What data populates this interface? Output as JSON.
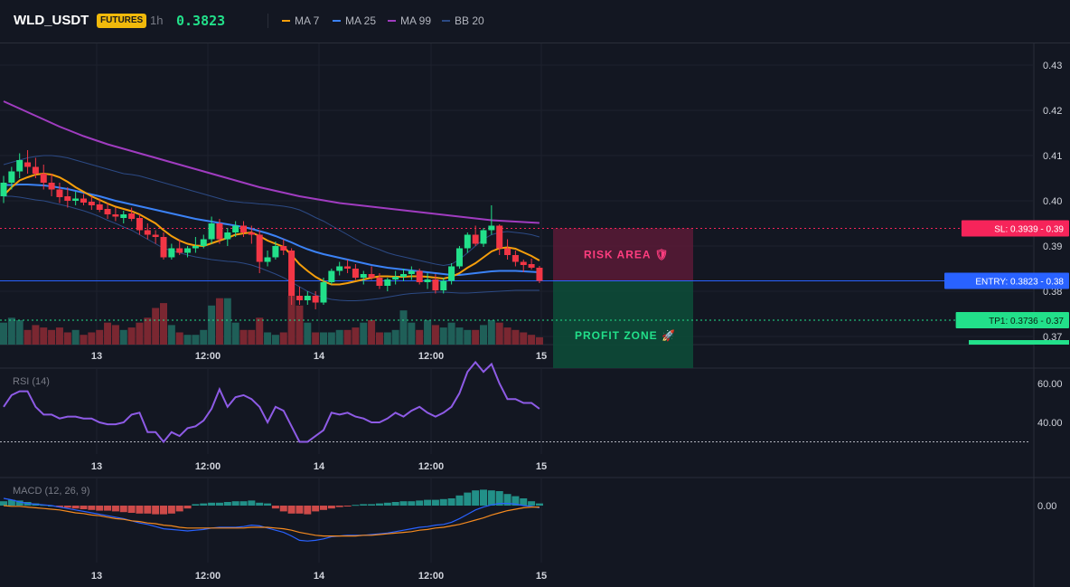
{
  "header": {
    "symbol": "WLD_USDT",
    "market_badge": "FUTURES",
    "interval": "1h",
    "last_price": "0.3823",
    "indicators": [
      {
        "label": "MA 7",
        "color": "#f59e0b"
      },
      {
        "label": "MA 25",
        "color": "#3b82f6"
      },
      {
        "label": "MA 99",
        "color": "#a03cc0"
      },
      {
        "label": "BB 20",
        "color": "#2c4a85"
      }
    ]
  },
  "colors": {
    "up": "#26a69a",
    "up_bright": "#22e08a",
    "down": "#f23645",
    "volume_up": "#1f5f58",
    "volume_down": "#7a2731",
    "sl": "#f6245a",
    "entry": "#2962ff",
    "tp": "#22e08a",
    "rsi": "#8e5be6",
    "macd_line": "#2962ff",
    "signal_line": "#f58a1f",
    "hist_up": "#26a69a",
    "hist_down": "#ef5350"
  },
  "time_axis": [
    "13",
    "12:00",
    "14",
    "12:00",
    "15"
  ],
  "price_axis": [
    "0.43",
    "0.42",
    "0.41",
    "0.40",
    "0.39",
    "0.38",
    "0.37"
  ],
  "rsi_pane": {
    "title": "RSI (14)",
    "ticks": [
      "60.00",
      "40.00"
    ],
    "levels": [
      70,
      30
    ]
  },
  "macd_pane": {
    "title": "MACD (12, 26, 9)",
    "ticks": [
      "0.00"
    ]
  },
  "trade_setup": {
    "sl_label": "SL: 0.3939 - 0.39",
    "entry_label": "ENTRY: 0.3823 - 0.38",
    "tp1_label": "TP1: 0.3736 - 0.37",
    "sl": 0.3939,
    "entry": 0.3823,
    "tp1": 0.3736,
    "tp2": 0.3701,
    "risk_label": "RISK AREA 🛡",
    "profit_label": "PROFIT ZONE 🚀"
  },
  "chart_data": {
    "type": "candlestick",
    "title": "WLD_USDT",
    "interval": "1h",
    "ylim": [
      0.37,
      0.4325
    ],
    "x_tick_labels": [
      "13",
      "12:00",
      "14",
      "12:00",
      "15"
    ],
    "candles": [
      [
        0.401,
        0.4055,
        0.3995,
        0.404
      ],
      [
        0.404,
        0.4075,
        0.4025,
        0.4065
      ],
      [
        0.4065,
        0.4105,
        0.405,
        0.409
      ],
      [
        0.4085,
        0.4112,
        0.406,
        0.4075
      ],
      [
        0.4075,
        0.4095,
        0.405,
        0.406
      ],
      [
        0.406,
        0.408,
        0.4025,
        0.404
      ],
      [
        0.404,
        0.406,
        0.401,
        0.4025
      ],
      [
        0.4025,
        0.404,
        0.3995,
        0.4008
      ],
      [
        0.401,
        0.403,
        0.3985,
        0.4
      ],
      [
        0.4,
        0.402,
        0.399,
        0.4005
      ],
      [
        0.4005,
        0.4015,
        0.399,
        0.3996
      ],
      [
        0.3998,
        0.401,
        0.398,
        0.399
      ],
      [
        0.3992,
        0.4005,
        0.3975,
        0.398
      ],
      [
        0.3982,
        0.3995,
        0.396,
        0.397
      ],
      [
        0.397,
        0.3985,
        0.3955,
        0.3965
      ],
      [
        0.3962,
        0.3978,
        0.395,
        0.397
      ],
      [
        0.3972,
        0.3985,
        0.3955,
        0.396
      ],
      [
        0.3962,
        0.397,
        0.3925,
        0.3935
      ],
      [
        0.3935,
        0.395,
        0.3915,
        0.3925
      ],
      [
        0.3925,
        0.3935,
        0.3905,
        0.392
      ],
      [
        0.392,
        0.393,
        0.387,
        0.3875
      ],
      [
        0.3875,
        0.3905,
        0.387,
        0.3895
      ],
      [
        0.3895,
        0.3915,
        0.388,
        0.3885
      ],
      [
        0.3885,
        0.39,
        0.3875,
        0.3895
      ],
      [
        0.3895,
        0.392,
        0.3885,
        0.39
      ],
      [
        0.39,
        0.3925,
        0.3895,
        0.3915
      ],
      [
        0.3915,
        0.3965,
        0.3905,
        0.395
      ],
      [
        0.395,
        0.396,
        0.3905,
        0.3915
      ],
      [
        0.3915,
        0.394,
        0.39,
        0.393
      ],
      [
        0.393,
        0.3955,
        0.392,
        0.3945
      ],
      [
        0.3945,
        0.3955,
        0.392,
        0.393
      ],
      [
        0.393,
        0.3945,
        0.3905,
        0.3925
      ],
      [
        0.3925,
        0.3935,
        0.384,
        0.3865
      ],
      [
        0.3865,
        0.389,
        0.3855,
        0.3875
      ],
      [
        0.3875,
        0.391,
        0.387,
        0.39
      ],
      [
        0.39,
        0.3915,
        0.388,
        0.389
      ],
      [
        0.389,
        0.3895,
        0.377,
        0.379
      ],
      [
        0.379,
        0.381,
        0.377,
        0.378
      ],
      [
        0.378,
        0.38,
        0.377,
        0.379
      ],
      [
        0.379,
        0.38,
        0.376,
        0.3775
      ],
      [
        0.3775,
        0.383,
        0.377,
        0.382
      ],
      [
        0.382,
        0.385,
        0.3815,
        0.3845
      ],
      [
        0.3845,
        0.3865,
        0.3835,
        0.3855
      ],
      [
        0.3855,
        0.387,
        0.384,
        0.385
      ],
      [
        0.385,
        0.386,
        0.3825,
        0.383
      ],
      [
        0.383,
        0.3845,
        0.3815,
        0.3838
      ],
      [
        0.3838,
        0.3855,
        0.3825,
        0.383
      ],
      [
        0.383,
        0.384,
        0.3805,
        0.3812
      ],
      [
        0.3812,
        0.383,
        0.38,
        0.3826
      ],
      [
        0.3826,
        0.3845,
        0.3815,
        0.3832
      ],
      [
        0.3832,
        0.385,
        0.3822,
        0.3838
      ],
      [
        0.3838,
        0.3855,
        0.3825,
        0.3845
      ],
      [
        0.3845,
        0.385,
        0.3815,
        0.382
      ],
      [
        0.382,
        0.384,
        0.3805,
        0.3826
      ],
      [
        0.3826,
        0.3838,
        0.3795,
        0.3802
      ],
      [
        0.3802,
        0.383,
        0.3795,
        0.3823
      ],
      [
        0.3823,
        0.3862,
        0.3815,
        0.3855
      ],
      [
        0.3855,
        0.39,
        0.385,
        0.3895
      ],
      [
        0.3895,
        0.393,
        0.3885,
        0.3925
      ],
      [
        0.3925,
        0.3945,
        0.39,
        0.3905
      ],
      [
        0.3905,
        0.394,
        0.3898,
        0.3935
      ],
      [
        0.3935,
        0.399,
        0.3925,
        0.3945
      ],
      [
        0.3945,
        0.3948,
        0.388,
        0.3895
      ],
      [
        0.3895,
        0.3915,
        0.387,
        0.388
      ],
      [
        0.388,
        0.389,
        0.3855,
        0.3865
      ],
      [
        0.3865,
        0.387,
        0.3842,
        0.3858
      ],
      [
        0.386,
        0.3872,
        0.3848,
        0.3852
      ],
      [
        0.3852,
        0.3856,
        0.3818,
        0.3823
      ]
    ],
    "ma7": [
      0.4012,
      0.403,
      0.4045,
      0.4052,
      0.4058,
      0.406,
      0.4058,
      0.4052,
      0.4042,
      0.403,
      0.402,
      0.401,
      0.4002,
      0.3994,
      0.3987,
      0.3982,
      0.3977,
      0.397,
      0.396,
      0.395,
      0.3935,
      0.3922,
      0.3912,
      0.3905,
      0.3901,
      0.39,
      0.3906,
      0.3912,
      0.3918,
      0.3925,
      0.3928,
      0.393,
      0.3922,
      0.3912,
      0.3905,
      0.3898,
      0.388,
      0.386,
      0.3845,
      0.3832,
      0.3822,
      0.3815,
      0.3815,
      0.3818,
      0.3822,
      0.3826,
      0.383,
      0.3833,
      0.3833,
      0.3832,
      0.3832,
      0.3833,
      0.3833,
      0.3832,
      0.383,
      0.3828,
      0.3832,
      0.384,
      0.3852,
      0.3862,
      0.3875,
      0.3888,
      0.3895,
      0.3897,
      0.3894,
      0.3886,
      0.3878,
      0.3868
    ],
    "ma25": [
      0.4035,
      0.4035,
      0.4036,
      0.4036,
      0.4035,
      0.4034,
      0.4032,
      0.4029,
      0.4026,
      0.4022,
      0.4018,
      0.4014,
      0.401,
      0.4005,
      0.4,
      0.3996,
      0.3992,
      0.3988,
      0.3984,
      0.398,
      0.3976,
      0.3972,
      0.3968,
      0.3964,
      0.396,
      0.3957,
      0.3954,
      0.3951,
      0.3948,
      0.3945,
      0.3942,
      0.3938,
      0.3933,
      0.3928,
      0.3922,
      0.3915,
      0.3908,
      0.39,
      0.3893,
      0.3887,
      0.3882,
      0.3878,
      0.3874,
      0.387,
      0.3866,
      0.3862,
      0.3858,
      0.3855,
      0.3852,
      0.385,
      0.3848,
      0.3846,
      0.3844,
      0.3842,
      0.384,
      0.3838,
      0.3836,
      0.3836,
      0.3838,
      0.384,
      0.3842,
      0.3844,
      0.3845,
      0.3845,
      0.3845,
      0.3844,
      0.3843,
      0.3842
    ],
    "ma99": [
      0.422,
      0.4212,
      0.4204,
      0.4196,
      0.4188,
      0.418,
      0.4172,
      0.4164,
      0.4157,
      0.415,
      0.4143,
      0.4137,
      0.4131,
      0.4125,
      0.412,
      0.4115,
      0.411,
      0.4105,
      0.41,
      0.4095,
      0.409,
      0.4085,
      0.408,
      0.4075,
      0.407,
      0.4065,
      0.406,
      0.4055,
      0.405,
      0.4045,
      0.404,
      0.4035,
      0.403,
      0.4026,
      0.4022,
      0.4018,
      0.4014,
      0.401,
      0.4007,
      0.4004,
      0.4001,
      0.3998,
      0.3995,
      0.3993,
      0.3991,
      0.3989,
      0.3987,
      0.3985,
      0.3983,
      0.3981,
      0.3979,
      0.3977,
      0.3975,
      0.3973,
      0.3971,
      0.3969,
      0.3967,
      0.3965,
      0.3963,
      0.3961,
      0.3959,
      0.3957,
      0.3956,
      0.3955,
      0.3954,
      0.3953,
      0.3952,
      0.3951
    ],
    "bb_upper": [
      0.408,
      0.4085,
      0.409,
      0.4095,
      0.4098,
      0.41,
      0.41,
      0.4098,
      0.4095,
      0.409,
      0.4085,
      0.408,
      0.4075,
      0.407,
      0.4065,
      0.406,
      0.4058,
      0.4055,
      0.405,
      0.4045,
      0.404,
      0.4035,
      0.403,
      0.4025,
      0.402,
      0.4015,
      0.401,
      0.4005,
      0.4,
      0.3998,
      0.3996,
      0.3995,
      0.3993,
      0.3992,
      0.399,
      0.3988,
      0.3985,
      0.398,
      0.3972,
      0.3963,
      0.3955,
      0.3945,
      0.3935,
      0.3925,
      0.3915,
      0.3905,
      0.3898,
      0.3892,
      0.3885,
      0.388,
      0.3876,
      0.3872,
      0.3868,
      0.3864,
      0.386,
      0.3857,
      0.386,
      0.387,
      0.3885,
      0.39,
      0.3915,
      0.3925,
      0.393,
      0.3932,
      0.393,
      0.3928,
      0.3925,
      0.392
    ],
    "bb_lower": [
      0.401,
      0.401,
      0.4008,
      0.4005,
      0.4002,
      0.4,
      0.3996,
      0.3992,
      0.3988,
      0.3983,
      0.3978,
      0.3972,
      0.3965,
      0.3957,
      0.395,
      0.3942,
      0.3935,
      0.3925,
      0.3915,
      0.3905,
      0.3895,
      0.389,
      0.3885,
      0.388,
      0.3876,
      0.3873,
      0.387,
      0.3868,
      0.3866,
      0.3865,
      0.3862,
      0.3858,
      0.3852,
      0.3845,
      0.3838,
      0.383,
      0.382,
      0.381,
      0.38,
      0.3792,
      0.3786,
      0.3782,
      0.378,
      0.3779,
      0.3779,
      0.378,
      0.3782,
      0.3784,
      0.3787,
      0.379,
      0.3793,
      0.3795,
      0.3796,
      0.3797,
      0.3798,
      0.3798,
      0.3797,
      0.3796,
      0.3796,
      0.3797,
      0.3798,
      0.3799,
      0.38,
      0.3801,
      0.3802,
      0.3802,
      0.3802,
      0.3802
    ],
    "volume": [
      0.45,
      0.55,
      0.5,
      0.3,
      0.4,
      0.35,
      0.3,
      0.35,
      0.25,
      0.3,
      0.2,
      0.25,
      0.3,
      0.45,
      0.4,
      0.3,
      0.35,
      0.45,
      0.55,
      0.75,
      0.85,
      0.4,
      0.25,
      0.2,
      0.2,
      0.3,
      0.8,
      0.95,
      0.95,
      0.45,
      0.3,
      0.3,
      0.55,
      0.25,
      0.2,
      0.25,
      1.0,
      0.8,
      0.45,
      0.25,
      0.25,
      0.25,
      0.3,
      0.3,
      0.35,
      0.45,
      0.5,
      0.25,
      0.25,
      0.3,
      0.7,
      0.45,
      0.3,
      0.5,
      0.4,
      0.35,
      0.45,
      0.35,
      0.3,
      0.3,
      0.4,
      0.5,
      0.45,
      0.35,
      0.3,
      0.25,
      0.2,
      0.15
    ],
    "rsi": [
      48,
      54,
      56,
      56,
      48,
      44,
      44,
      42,
      43,
      43,
      42,
      42,
      40,
      39,
      39,
      40,
      44,
      45,
      35,
      35,
      30,
      35,
      33,
      37,
      38,
      41,
      47,
      57,
      48,
      53,
      54,
      52,
      48,
      40,
      48,
      46,
      38,
      30,
      30,
      33,
      36,
      45,
      44,
      45,
      43,
      42,
      40,
      40,
      42,
      45,
      43,
      46,
      48,
      45,
      43,
      45,
      48,
      55,
      66,
      71,
      66,
      70,
      60,
      52,
      52,
      50,
      50,
      47
    ],
    "macd": [
      0.001,
      0.0008,
      0.0005,
      0.0003,
      0.0002,
      0.0001,
      0.0,
      -0.0002,
      -0.0004,
      -0.0006,
      -0.0008,
      -0.001,
      -0.0012,
      -0.0014,
      -0.0016,
      -0.0018,
      -0.0021,
      -0.0024,
      -0.0026,
      -0.0029,
      -0.0032,
      -0.0033,
      -0.0034,
      -0.0035,
      -0.0034,
      -0.0033,
      -0.0031,
      -0.003,
      -0.003,
      -0.003,
      -0.0029,
      -0.0027,
      -0.0028,
      -0.0031,
      -0.0034,
      -0.0037,
      -0.0042,
      -0.0048,
      -0.0049,
      -0.0048,
      -0.0046,
      -0.0043,
      -0.0042,
      -0.0041,
      -0.0041,
      -0.0041,
      -0.004,
      -0.0039,
      -0.0038,
      -0.0036,
      -0.0034,
      -0.0032,
      -0.003,
      -0.0029,
      -0.0027,
      -0.0026,
      -0.0023,
      -0.0018,
      -0.0012,
      -0.0006,
      -0.0002,
      0.0001,
      0.0003,
      0.0003,
      0.0002,
      0.0,
      -0.0001,
      -0.0003
    ],
    "signal": [
      0.0,
      -0.0001,
      -0.0001,
      -0.0002,
      -0.0003,
      -0.0004,
      -0.0005,
      -0.0006,
      -0.0008,
      -0.001,
      -0.0011,
      -0.0013,
      -0.0014,
      -0.0016,
      -0.0018,
      -0.0019,
      -0.0021,
      -0.0022,
      -0.0024,
      -0.0025,
      -0.0027,
      -0.0028,
      -0.003,
      -0.0031,
      -0.0031,
      -0.0031,
      -0.0031,
      -0.0031,
      -0.0031,
      -0.0031,
      -0.0031,
      -0.003,
      -0.003,
      -0.003,
      -0.0031,
      -0.0032,
      -0.0034,
      -0.0037,
      -0.0039,
      -0.0041,
      -0.0042,
      -0.0042,
      -0.0042,
      -0.0042,
      -0.0042,
      -0.0041,
      -0.0041,
      -0.004,
      -0.0039,
      -0.0038,
      -0.0037,
      -0.0036,
      -0.0034,
      -0.0033,
      -0.0031,
      -0.003,
      -0.0028,
      -0.0026,
      -0.0023,
      -0.002,
      -0.0017,
      -0.0013,
      -0.001,
      -0.0007,
      -0.0005,
      -0.0003,
      -0.0002,
      -0.0002
    ],
    "macd_hist": [
      0.0006,
      0.0008,
      0.0007,
      0.0005,
      0.0003,
      0.0001,
      0.0,
      -0.0002,
      -0.0003,
      -0.0004,
      -0.0005,
      -0.0006,
      -0.0007,
      -0.0007,
      -0.0008,
      -0.0009,
      -0.001,
      -0.0011,
      -0.0011,
      -0.0012,
      -0.0012,
      -0.0011,
      -0.0008,
      -0.0004,
      0.0002,
      0.0003,
      0.0004,
      0.0004,
      0.0005,
      0.0006,
      0.0006,
      0.0007,
      0.0004,
      0.0003,
      -0.0004,
      -0.0008,
      -0.0011,
      -0.0011,
      -0.0012,
      -0.0008,
      -0.0006,
      -0.0004,
      -0.0002,
      -0.0001,
      0.0001,
      0.0002,
      0.0002,
      0.0003,
      0.0004,
      0.0005,
      0.0006,
      0.0006,
      0.0007,
      0.0008,
      0.0008,
      0.0009,
      0.001,
      0.0014,
      0.0018,
      0.0021,
      0.0022,
      0.0021,
      0.002,
      0.0016,
      0.0013,
      0.001,
      0.0006,
      0.0003
    ]
  }
}
